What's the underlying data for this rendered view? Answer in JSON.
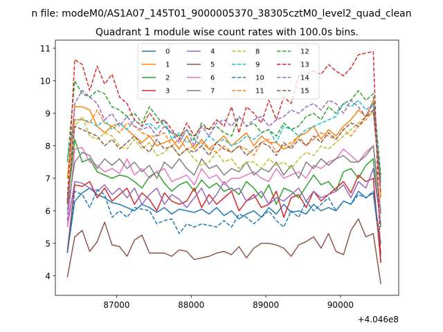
{
  "chart_data": {
    "type": "line",
    "suptitle": "n file: modeM0/AS1A07_145T01_9000005370_38305cztM0_level2_quad_clean",
    "title": "Quadrant 1 module wise count rates with 100.0s bins.",
    "xlabel": "",
    "ylabel": "",
    "xlim": [
      86180,
      90780
    ],
    "ylim": [
      3.4,
      11.25
    ],
    "x_offset_label": "+4.046e8",
    "xticks": [
      87000,
      88000,
      89000,
      90000
    ],
    "xtick_labels": [
      "87000",
      "88000",
      "89000",
      "90000"
    ],
    "yticks": [
      4,
      5,
      6,
      7,
      8,
      9,
      10,
      11
    ],
    "ytick_labels": [
      "4",
      "5",
      "6",
      "7",
      "8",
      "9",
      "10",
      "11"
    ],
    "grid": false,
    "legend_position": "top-center",
    "legend_columns": 4,
    "x": [
      86340,
      86440,
      86540,
      86640,
      86740,
      86840,
      86940,
      87040,
      87140,
      87240,
      87340,
      87440,
      87540,
      87640,
      87740,
      87840,
      87940,
      88040,
      88140,
      88240,
      88340,
      88440,
      88540,
      88640,
      88740,
      88840,
      88940,
      89040,
      89140,
      89240,
      89340,
      89440,
      89540,
      89640,
      89740,
      89840,
      89940,
      90040,
      90140,
      90240,
      90340,
      90440,
      90540
    ],
    "series": [
      {
        "name": "0",
        "color": "#1f77b4",
        "dash": "solid",
        "values": [
          4.7,
          6.3,
          6.55,
          6.7,
          6.5,
          6.4,
          6.25,
          6.2,
          6.1,
          6.0,
          6.2,
          6.1,
          5.95,
          6.1,
          5.9,
          6.05,
          6.0,
          5.95,
          6.05,
          5.9,
          6.1,
          5.85,
          6.0,
          5.75,
          5.9,
          6.0,
          5.8,
          6.1,
          5.9,
          6.2,
          5.95,
          6.0,
          5.9,
          6.2,
          6.0,
          6.1,
          6.0,
          6.3,
          6.2,
          6.6,
          6.4,
          6.55,
          4.7
        ]
      },
      {
        "name": "1",
        "color": "#ff7f0e",
        "dash": "solid",
        "values": [
          7.0,
          9.2,
          9.2,
          9.1,
          8.6,
          8.4,
          8.6,
          8.7,
          8.5,
          8.3,
          8.1,
          8.3,
          8.0,
          8.1,
          8.2,
          7.9,
          8.3,
          7.9,
          8.2,
          7.9,
          8.1,
          8.3,
          8.0,
          8.2,
          8.4,
          8.0,
          8.3,
          8.1,
          8.1,
          7.9,
          8.0,
          8.3,
          8.4,
          8.6,
          8.2,
          8.5,
          8.3,
          8.6,
          8.8,
          9.1,
          8.9,
          9.4,
          6.4
        ]
      },
      {
        "name": "2",
        "color": "#2ca02c",
        "dash": "solid",
        "values": [
          6.2,
          8.2,
          7.5,
          7.6,
          7.2,
          7.1,
          7.0,
          7.1,
          7.05,
          6.9,
          6.7,
          7.05,
          7.2,
          6.85,
          6.6,
          6.8,
          6.9,
          6.6,
          6.95,
          6.7,
          6.85,
          6.6,
          6.7,
          6.5,
          6.9,
          6.7,
          6.4,
          6.8,
          6.2,
          6.7,
          6.6,
          6.4,
          6.75,
          7.1,
          6.8,
          6.9,
          6.6,
          7.2,
          7.3,
          7.0,
          7.4,
          7.6,
          5.5
        ]
      },
      {
        "name": "3",
        "color": "#d62728",
        "dash": "solid",
        "values": [
          4.75,
          6.8,
          6.75,
          6.9,
          6.4,
          6.7,
          6.3,
          6.5,
          6.7,
          6.2,
          6.55,
          6.35,
          6.0,
          6.55,
          6.3,
          6.2,
          6.3,
          6.7,
          6.1,
          6.5,
          6.2,
          6.4,
          6.6,
          6.0,
          6.3,
          6.5,
          6.1,
          6.2,
          6.6,
          5.8,
          6.4,
          6.5,
          6.1,
          6.6,
          6.3,
          6.5,
          6.7,
          6.9,
          6.55,
          7.1,
          6.9,
          7.0,
          4.4
        ]
      },
      {
        "name": "4",
        "color": "#9467bd",
        "dash": "solid",
        "values": [
          5.5,
          6.9,
          6.85,
          6.7,
          6.6,
          6.8,
          6.5,
          6.7,
          6.4,
          6.7,
          6.2,
          6.5,
          6.7,
          6.2,
          6.5,
          6.35,
          6.1,
          6.4,
          6.7,
          6.2,
          6.5,
          6.9,
          6.6,
          6.7,
          6.3,
          6.4,
          6.6,
          6.2,
          6.4,
          6.3,
          6.5,
          6.7,
          6.3,
          6.6,
          6.4,
          6.5,
          6.6,
          6.8,
          6.4,
          6.9,
          6.7,
          7.3,
          5.6
        ]
      },
      {
        "name": "5",
        "color": "#8c564b",
        "dash": "solid",
        "values": [
          3.95,
          5.2,
          5.4,
          4.75,
          5.05,
          5.65,
          4.95,
          4.9,
          4.6,
          5.1,
          5.25,
          4.7,
          4.7,
          4.7,
          4.6,
          4.8,
          4.75,
          4.5,
          4.55,
          4.6,
          4.7,
          4.75,
          4.65,
          4.9,
          4.55,
          4.85,
          5.0,
          5.0,
          4.95,
          4.85,
          4.6,
          4.95,
          5.05,
          5.2,
          4.85,
          5.3,
          4.75,
          4.65,
          5.4,
          5.75,
          5.2,
          5.3,
          3.75
        ]
      },
      {
        "name": "6",
        "color": "#e377c2",
        "dash": "solid",
        "values": [
          5.5,
          7.9,
          7.95,
          7.5,
          7.4,
          7.2,
          7.3,
          7.15,
          7.6,
          7.1,
          7.3,
          7.0,
          7.2,
          7.3,
          6.9,
          7.0,
          7.1,
          6.8,
          7.3,
          7.0,
          7.1,
          6.8,
          7.0,
          7.0,
          7.1,
          7.2,
          7.0,
          6.9,
          7.3,
          7.0,
          7.1,
          7.2,
          7.0,
          7.4,
          7.3,
          7.5,
          7.6,
          7.9,
          7.7,
          7.5,
          7.8,
          8.0,
          6.0
        ]
      },
      {
        "name": "7",
        "color": "#7f7f7f",
        "dash": "solid",
        "values": [
          6.0,
          7.5,
          7.8,
          7.7,
          7.3,
          7.6,
          7.4,
          7.6,
          7.3,
          7.5,
          7.2,
          7.4,
          7.0,
          7.5,
          7.3,
          7.6,
          7.3,
          7.1,
          7.6,
          7.3,
          7.4,
          7.1,
          7.3,
          7.2,
          7.5,
          7.1,
          7.3,
          7.2,
          7.5,
          7.1,
          7.4,
          7.0,
          7.5,
          7.3,
          7.6,
          7.4,
          7.6,
          7.7,
          7.5,
          7.5,
          7.7,
          8.0,
          5.9
        ]
      },
      {
        "name": "8",
        "color": "#bcbd22",
        "dash": "dashed",
        "values": [
          7.0,
          8.6,
          8.9,
          8.3,
          8.2,
          8.4,
          8.3,
          8.0,
          7.9,
          8.2,
          7.9,
          8.1,
          7.7,
          7.8,
          8.0,
          7.7,
          7.9,
          7.6,
          7.4,
          7.5,
          7.8,
          7.5,
          7.6,
          7.3,
          7.5,
          7.5,
          7.3,
          7.6,
          7.4,
          7.5,
          7.3,
          7.6,
          7.8,
          7.7,
          8.0,
          7.9,
          8.1,
          8.3,
          8.5,
          8.7,
          8.9,
          9.0,
          7.0
        ]
      },
      {
        "name": "9",
        "color": "#17becf",
        "dash": "dashed",
        "values": [
          7.6,
          8.8,
          8.8,
          8.75,
          8.6,
          8.8,
          8.5,
          8.7,
          8.5,
          8.8,
          8.6,
          8.7,
          8.5,
          8.8,
          8.2,
          8.4,
          8.1,
          8.2,
          8.0,
          8.3,
          8.1,
          8.2,
          8.0,
          8.1,
          8.3,
          8.2,
          8.4,
          8.5,
          8.1,
          8.6,
          8.5,
          8.3,
          8.5,
          8.6,
          8.7,
          8.8,
          8.9,
          9.3,
          9.2,
          9.4,
          9.1,
          9.3,
          6.9
        ]
      },
      {
        "name": "10",
        "color": "#1f77b4",
        "dash": "dashed",
        "values": [
          4.7,
          6.6,
          6.5,
          6.1,
          6.65,
          6.5,
          5.8,
          6.0,
          5.8,
          6.1,
          6.05,
          6.0,
          5.6,
          5.7,
          5.75,
          5.3,
          5.6,
          5.5,
          5.6,
          5.55,
          5.5,
          5.7,
          5.5,
          5.9,
          5.8,
          5.6,
          5.8,
          6.0,
          5.7,
          5.5,
          6.0,
          5.8,
          6.3,
          6.0,
          6.2,
          6.4,
          6.0,
          6.3,
          6.2,
          6.5,
          6.4,
          6.6,
          5.0
        ]
      },
      {
        "name": "11",
        "color": "#ff7f0e",
        "dash": "dashed",
        "values": [
          6.3,
          8.8,
          8.8,
          8.7,
          9.1,
          8.7,
          8.6,
          8.4,
          8.7,
          8.6,
          8.4,
          8.3,
          8.3,
          8.4,
          8.0,
          8.2,
          7.9,
          8.0,
          8.1,
          7.9,
          7.8,
          8.0,
          7.8,
          8.0,
          7.9,
          7.7,
          8.1,
          8.2,
          7.8,
          8.0,
          8.1,
          8.3,
          8.0,
          8.2,
          8.4,
          8.3,
          8.2,
          8.5,
          8.3,
          8.6,
          8.8,
          9.1,
          6.5
        ]
      },
      {
        "name": "12",
        "color": "#2ca02c",
        "dash": "dashed",
        "values": [
          7.5,
          10.0,
          9.6,
          9.5,
          9.7,
          9.6,
          9.2,
          9.1,
          8.9,
          9.0,
          8.7,
          9.2,
          8.9,
          8.6,
          8.4,
          8.3,
          8.5,
          8.2,
          8.7,
          8.5,
          8.6,
          8.4,
          8.3,
          8.9,
          8.6,
          8.7,
          8.4,
          8.5,
          8.3,
          8.7,
          8.5,
          8.6,
          8.9,
          9.0,
          8.8,
          9.2,
          9.0,
          9.3,
          9.4,
          9.7,
          9.4,
          9.6,
          7.1
        ]
      },
      {
        "name": "13",
        "color": "#d62728",
        "dash": "dashed",
        "values": [
          6.3,
          10.65,
          10.5,
          9.7,
          10.45,
          9.9,
          10.2,
          9.5,
          9.3,
          8.8,
          8.6,
          9.0,
          8.7,
          8.8,
          8.5,
          8.2,
          8.7,
          8.3,
          8.6,
          8.5,
          8.8,
          8.6,
          9.2,
          8.4,
          9.2,
          9.0,
          8.7,
          9.4,
          8.8,
          9.5,
          9.3,
          10.15,
          10.2,
          10.3,
          10.2,
          10.5,
          10.3,
          10.15,
          10.4,
          10.8,
          10.85,
          10.9,
          4.4
        ]
      },
      {
        "name": "14",
        "color": "#9467bd",
        "dash": "dashed",
        "values": [
          5.7,
          9.3,
          9.7,
          9.5,
          9.3,
          8.8,
          9.0,
          8.6,
          8.9,
          8.6,
          8.5,
          8.6,
          8.3,
          8.6,
          8.4,
          8.1,
          8.5,
          8.0,
          8.6,
          8.3,
          8.7,
          8.8,
          8.6,
          8.9,
          8.6,
          8.8,
          8.9,
          8.6,
          8.8,
          8.9,
          9.1,
          9.0,
          9.2,
          9.3,
          9.1,
          9.4,
          9.3,
          9.0,
          9.4,
          9.2,
          8.9,
          9.3,
          6.8
        ]
      },
      {
        "name": "15",
        "color": "#8c564b",
        "dash": "dashed",
        "values": [
          6.2,
          8.6,
          8.5,
          8.4,
          8.3,
          8.0,
          8.2,
          7.9,
          8.1,
          8.3,
          8.0,
          7.8,
          8.2,
          7.9,
          8.0,
          7.7,
          7.9,
          7.8,
          8.0,
          7.7,
          8.1,
          7.9,
          7.8,
          8.0,
          7.7,
          7.9,
          8.1,
          8.0,
          7.7,
          8.1,
          7.9,
          8.2,
          8.0,
          8.3,
          8.1,
          8.4,
          8.2,
          8.5,
          8.7,
          8.6,
          8.9,
          9.1,
          6.6
        ]
      }
    ]
  }
}
